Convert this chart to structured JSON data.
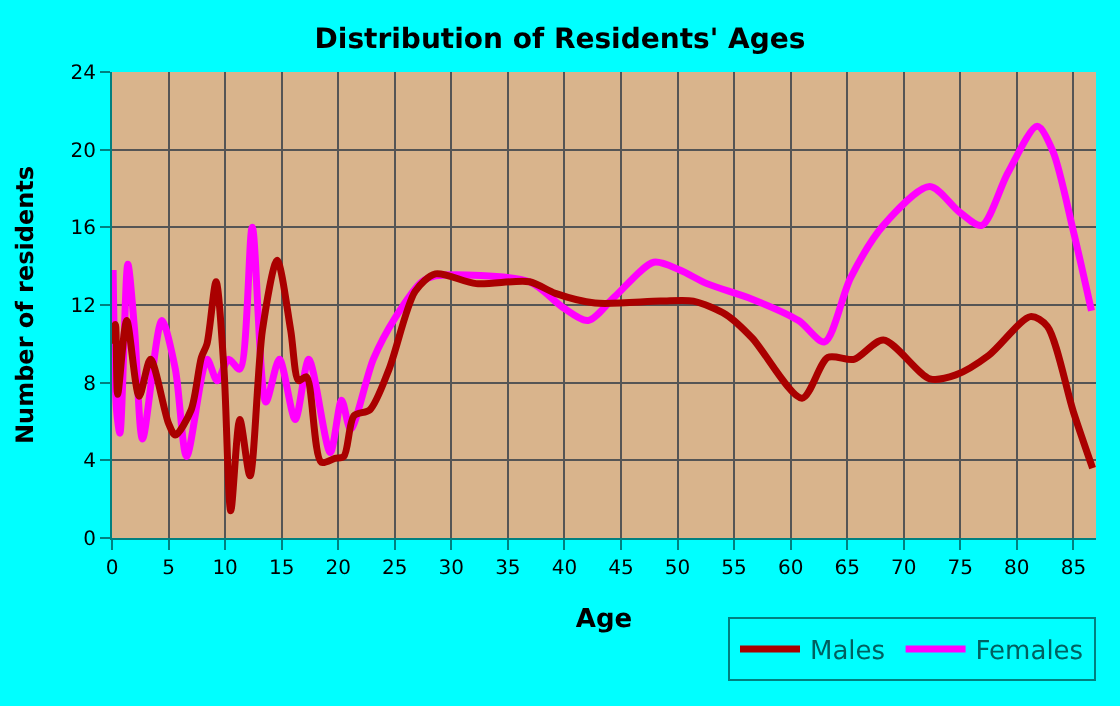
{
  "chart_data": {
    "type": "line",
    "title": "Distribution of Residents' Ages",
    "xlabel": "Age",
    "ylabel": "Number of residents",
    "xlim": [
      0,
      87
    ],
    "xticks": [
      0,
      5,
      10,
      15,
      20,
      25,
      30,
      35,
      40,
      45,
      50,
      55,
      60,
      65,
      70,
      75,
      80,
      85
    ],
    "ylim": [
      0,
      24
    ],
    "yticks": [
      0,
      4,
      8,
      12,
      16,
      20,
      24
    ],
    "grid": true,
    "legend": "bottom right",
    "series": [
      {
        "name": "Males",
        "color": "#aa0000",
        "x": [
          0,
          0.3,
          0.5,
          1.3,
          2.4,
          3.4,
          5,
          5.6,
          7,
          7.9,
          8.4,
          9.2,
          9.9,
          10.5,
          11.3,
          12.2,
          13.3,
          14.6,
          15.8,
          16.5,
          17.2,
          18.5,
          19.7,
          20.5,
          21.4,
          22.8,
          24.5,
          26.8,
          28.6,
          32.2,
          36.9,
          39.2,
          42.7,
          48.5,
          51.4,
          54.3,
          56.6,
          61,
          63.3,
          65.6,
          68.2,
          72.3,
          74.6,
          77.5,
          81.2,
          82.7,
          85,
          86.7
        ],
        "values": [
          10,
          11,
          7.4,
          11.2,
          7.3,
          9.2,
          5.9,
          5.3,
          6.6,
          9.3,
          10,
          13.2,
          8.7,
          1.4,
          6.1,
          3.2,
          10.7,
          14.3,
          10.7,
          8.1,
          8.3,
          3.9,
          4.1,
          4.2,
          6.3,
          6.6,
          8.7,
          12.7,
          13.6,
          13.1,
          13.2,
          12.6,
          12.1,
          12.2,
          12.2,
          11.5,
          10.3,
          7.2,
          9.3,
          9.2,
          10.2,
          8.2,
          8.4,
          9.4,
          11.4,
          10.9,
          6.5,
          3.6
        ]
      },
      {
        "name": "Females",
        "color": "#ff00ff",
        "x": [
          0.1,
          0.4,
          0.7,
          1.4,
          2,
          2.7,
          4.4,
          5.6,
          6.6,
          8.4,
          9.3,
          10.3,
          11.3,
          12.4,
          13.6,
          14.8,
          16.2,
          17.4,
          19.3,
          20.3,
          21.1,
          23.1,
          25.1,
          27.4,
          28.6,
          36.9,
          39.8,
          42.1,
          44.4,
          47.9,
          50.2,
          52.6,
          56.6,
          60.7,
          63,
          65.3,
          68.2,
          72.3,
          74.9,
          76.9,
          79.2,
          81.8,
          83.2,
          85,
          86.6
        ],
        "values": [
          13.8,
          6.6,
          5.4,
          14.1,
          10.7,
          5.1,
          11.2,
          8.7,
          4.2,
          9.2,
          8.1,
          9.2,
          8.7,
          16,
          7,
          9.2,
          6.1,
          9.2,
          4.4,
          7.1,
          5.6,
          9.2,
          11.4,
          13.2,
          13.5,
          13.2,
          11.9,
          11.2,
          12.4,
          14.2,
          13.8,
          13.1,
          12.3,
          11.2,
          10.1,
          13.4,
          16.1,
          18.1,
          16.8,
          16.1,
          18.8,
          21.2,
          19.9,
          15.8,
          11.7
        ]
      }
    ]
  }
}
